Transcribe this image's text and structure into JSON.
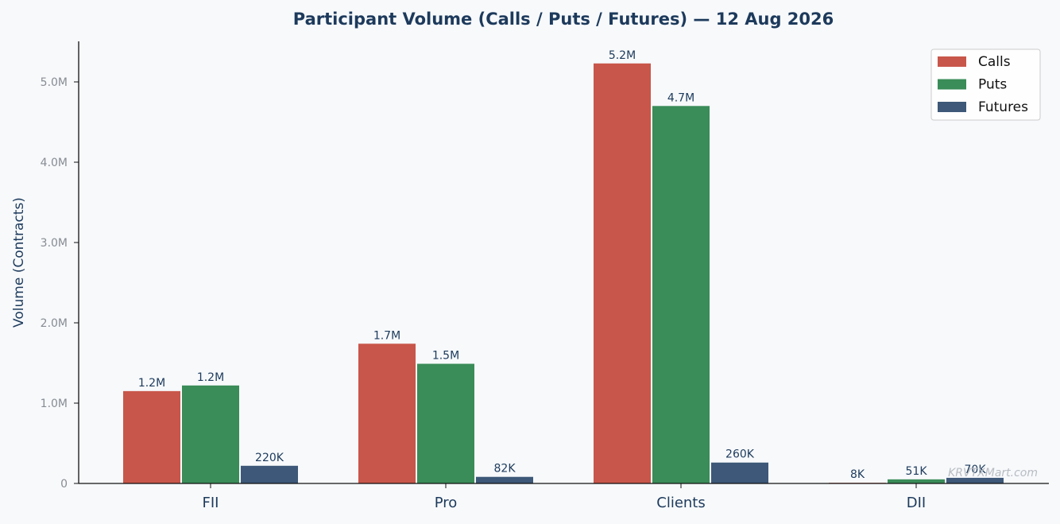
{
  "chart_data": {
    "type": "bar",
    "title": "Participant Volume (Calls / Puts / Futures) — 12 Aug 2026",
    "xlabel": "",
    "ylabel": "Volume (Contracts)",
    "categories": [
      "FII",
      "Pro",
      "Clients",
      "DII"
    ],
    "series": [
      {
        "name": "Calls",
        "color": "#c8564a",
        "values": [
          1150000,
          1740000,
          5230000,
          8000
        ],
        "labels": [
          "1.2M",
          "1.7M",
          "5.2M",
          "8K"
        ]
      },
      {
        "name": "Puts",
        "color": "#3a8c58",
        "values": [
          1220000,
          1490000,
          4700000,
          51000
        ],
        "labels": [
          "1.2M",
          "1.5M",
          "4.7M",
          "51K"
        ]
      },
      {
        "name": "Futures",
        "color": "#3d5878",
        "values": [
          220000,
          82000,
          260000,
          70000
        ],
        "labels": [
          "220K",
          "82K",
          "260K",
          "70K"
        ]
      }
    ],
    "ylim": [
      0,
      5500000
    ],
    "yticks": [
      0,
      1000000,
      2000000,
      3000000,
      4000000,
      5000000
    ],
    "ytick_labels": [
      "0",
      "1.0M",
      "2.0M",
      "3.0M",
      "4.0M",
      "5.0M"
    ],
    "grid": false,
    "legend": "top-right",
    "watermark": "KRVTXMart.com"
  }
}
